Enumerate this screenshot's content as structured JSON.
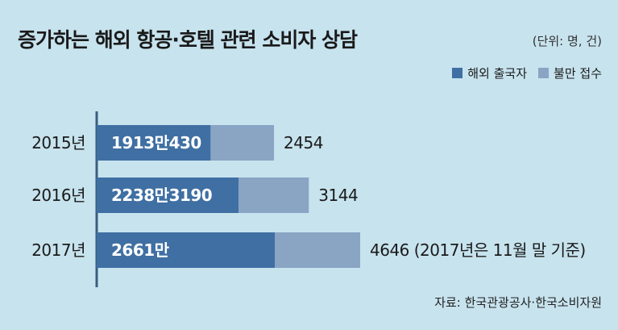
{
  "chart_data": {
    "type": "bar",
    "orientation": "horizontal",
    "stacked": true,
    "title": "증가하는 해외 항공·호텔 관련 소비자 상담",
    "unit": "(단위: 명, 건)",
    "categories": [
      "2015년",
      "2016년",
      "2017년"
    ],
    "series": [
      {
        "name": "해외 출국자",
        "values": [
          19130430,
          22383190,
          26610000
        ],
        "labels": [
          "1913만430",
          "2238만3190",
          "2661만"
        ],
        "color": "#3f6fa3"
      },
      {
        "name": "불만 접수",
        "values": [
          2454,
          3144,
          4646
        ],
        "labels": [
          "2454",
          "3144",
          "4646 (2017년은 11월 말 기준)"
        ],
        "color": "#8aa4c4"
      }
    ],
    "legend_position": "top-right",
    "grid": false,
    "source": "자료: 한국관광공사·한국소비자원"
  }
}
